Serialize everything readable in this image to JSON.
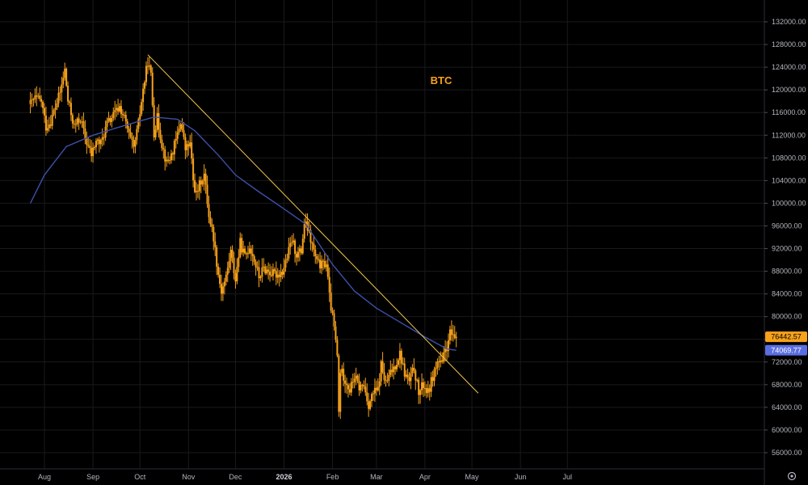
{
  "chart_data": {
    "type": "candlestick",
    "title": "BTC",
    "symbol": "BTC",
    "y_axis": {
      "ylim": [
        53000,
        134000
      ],
      "ticks": [
        "132000.00",
        "128000.00",
        "124000.00",
        "120000.00",
        "116000.00",
        "112000.00",
        "108000.00",
        "104000.00",
        "100000.00",
        "96000.00",
        "92000.00",
        "88000.00",
        "84000.00",
        "80000.00",
        "76000.00",
        "72000.00",
        "68000.00",
        "64000.00",
        "60000.00",
        "56000.00"
      ]
    },
    "x_axis": {
      "range": [
        "2025-07-23",
        "2026-07-23"
      ],
      "ticks": [
        {
          "label": "Aug",
          "date": "2025-08-01",
          "bold": false
        },
        {
          "label": "Sep",
          "date": "2025-09-01",
          "bold": false
        },
        {
          "label": "Oct",
          "date": "2025-10-01",
          "bold": false
        },
        {
          "label": "Nov",
          "date": "2025-11-01",
          "bold": false
        },
        {
          "label": "Dec",
          "date": "2025-12-01",
          "bold": false
        },
        {
          "label": "2026",
          "date": "2026-01-01",
          "bold": true
        },
        {
          "label": "Feb",
          "date": "2026-02-01",
          "bold": false
        },
        {
          "label": "Mar",
          "date": "2026-03-01",
          "bold": false
        },
        {
          "label": "Apr",
          "date": "2026-04-01",
          "bold": false
        },
        {
          "label": "May",
          "date": "2026-05-01",
          "bold": false
        },
        {
          "label": "Jun",
          "date": "2026-06-01",
          "bold": false
        },
        {
          "label": "Jul",
          "date": "2026-07-01",
          "bold": false
        }
      ]
    },
    "price_close_path": [
      [
        "2025-07-23",
        117500
      ],
      [
        "2025-07-26",
        118500
      ],
      [
        "2025-07-30",
        118000
      ],
      [
        "2025-08-02",
        113500
      ],
      [
        "2025-08-05",
        114500
      ],
      [
        "2025-08-08",
        117000
      ],
      [
        "2025-08-11",
        119500
      ],
      [
        "2025-08-14",
        123500
      ],
      [
        "2025-08-16",
        118000
      ],
      [
        "2025-08-20",
        113500
      ],
      [
        "2025-08-24",
        115000
      ],
      [
        "2025-08-27",
        111500
      ],
      [
        "2025-08-31",
        108500
      ],
      [
        "2025-09-03",
        111000
      ],
      [
        "2025-09-06",
        110500
      ],
      [
        "2025-09-10",
        114000
      ],
      [
        "2025-09-14",
        115500
      ],
      [
        "2025-09-18",
        117000
      ],
      [
        "2025-09-21",
        115000
      ],
      [
        "2025-09-24",
        112000
      ],
      [
        "2025-09-27",
        109500
      ],
      [
        "2025-09-30",
        114000
      ],
      [
        "2025-10-03",
        120000
      ],
      [
        "2025-10-06",
        125000
      ],
      [
        "2025-10-08",
        122500
      ],
      [
        "2025-10-10",
        112500
      ],
      [
        "2025-10-12",
        115000
      ],
      [
        "2025-10-15",
        110500
      ],
      [
        "2025-10-18",
        107000
      ],
      [
        "2025-10-21",
        108500
      ],
      [
        "2025-10-24",
        111000
      ],
      [
        "2025-10-27",
        114500
      ],
      [
        "2025-10-30",
        109500
      ],
      [
        "2025-11-02",
        110500
      ],
      [
        "2025-11-04",
        104000
      ],
      [
        "2025-11-06",
        101500
      ],
      [
        "2025-11-09",
        104000
      ],
      [
        "2025-11-11",
        105000
      ],
      [
        "2025-11-14",
        98000
      ],
      [
        "2025-11-17",
        94000
      ],
      [
        "2025-11-20",
        87500
      ],
      [
        "2025-11-22",
        84500
      ],
      [
        "2025-11-25",
        87000
      ],
      [
        "2025-11-28",
        91500
      ],
      [
        "2025-12-01",
        86500
      ],
      [
        "2025-12-04",
        93000
      ],
      [
        "2025-12-07",
        90500
      ],
      [
        "2025-12-10",
        92500
      ],
      [
        "2025-12-13",
        90000
      ],
      [
        "2025-12-16",
        87000
      ],
      [
        "2025-12-19",
        88500
      ],
      [
        "2025-12-22",
        88000
      ],
      [
        "2025-12-25",
        87500
      ],
      [
        "2025-12-28",
        87500
      ],
      [
        "2025-12-31",
        88000
      ],
      [
        "2026-01-03",
        90500
      ],
      [
        "2026-01-06",
        93500
      ],
      [
        "2026-01-09",
        91000
      ],
      [
        "2026-01-12",
        91500
      ],
      [
        "2026-01-14",
        96500
      ],
      [
        "2026-01-16",
        95500
      ],
      [
        "2026-01-19",
        92500
      ],
      [
        "2026-01-22",
        89500
      ],
      [
        "2026-01-25",
        89000
      ],
      [
        "2026-01-28",
        89500
      ],
      [
        "2026-01-30",
        83500
      ],
      [
        "2026-02-02",
        78000
      ],
      [
        "2026-02-04",
        73000
      ],
      [
        "2026-02-05",
        63000
      ],
      [
        "2026-02-06",
        70500
      ],
      [
        "2026-02-09",
        69000
      ],
      [
        "2026-02-12",
        67000
      ],
      [
        "2026-02-15",
        69500
      ],
      [
        "2026-02-18",
        67500
      ],
      [
        "2026-02-21",
        67800
      ],
      [
        "2026-02-24",
        64500
      ],
      [
        "2026-02-27",
        66500
      ],
      [
        "2026-03-02",
        67000
      ],
      [
        "2026-03-04",
        71500
      ],
      [
        "2026-03-07",
        68000
      ],
      [
        "2026-03-10",
        70000
      ],
      [
        "2026-03-13",
        71500
      ],
      [
        "2026-03-16",
        73500
      ],
      [
        "2026-03-19",
        70000
      ],
      [
        "2026-03-22",
        68500
      ],
      [
        "2026-03-25",
        71000
      ],
      [
        "2026-03-28",
        66500
      ],
      [
        "2026-03-31",
        68000
      ],
      [
        "2026-04-03",
        66500
      ],
      [
        "2026-04-06",
        69500
      ],
      [
        "2026-04-09",
        72000
      ],
      [
        "2026-04-12",
        71500
      ],
      [
        "2026-04-14",
        74500
      ],
      [
        "2026-04-16",
        75000
      ],
      [
        "2026-04-17",
        77500
      ],
      [
        "2026-04-19",
        76000
      ],
      [
        "2026-04-21",
        76442.57
      ]
    ],
    "moving_average_path": [
      [
        "2025-07-23",
        100000
      ],
      [
        "2025-08-01",
        105000
      ],
      [
        "2025-08-15",
        110000
      ],
      [
        "2025-09-01",
        112000
      ],
      [
        "2025-09-15",
        113200
      ],
      [
        "2025-10-01",
        114500
      ],
      [
        "2025-10-10",
        115200
      ],
      [
        "2025-10-25",
        114800
      ],
      [
        "2025-11-05",
        112800
      ],
      [
        "2025-11-20",
        108500
      ],
      [
        "2025-12-01",
        105000
      ],
      [
        "2025-12-15",
        102200
      ],
      [
        "2026-01-01",
        99000
      ],
      [
        "2026-01-15",
        96300
      ],
      [
        "2026-02-01",
        89200
      ],
      [
        "2026-02-15",
        84500
      ],
      [
        "2026-03-01",
        81500
      ],
      [
        "2026-03-15",
        79200
      ],
      [
        "2026-04-01",
        76400
      ],
      [
        "2026-04-15",
        74300
      ],
      [
        "2026-04-21",
        74069.77
      ]
    ],
    "trend_line": {
      "start": [
        "2025-10-06",
        126200
      ],
      "end": [
        "2026-05-05",
        66500
      ]
    },
    "last_price": {
      "value": 76442.57,
      "label": "76442.57",
      "color": "#f7a21b"
    },
    "ma_value": {
      "value": 74069.77,
      "label": "74069.77",
      "color": "#5b6ee1"
    },
    "colors": {
      "background": "#000000",
      "candles": "#f7a21b",
      "moving_average": "#3f4fa8",
      "trend_line": "#f2c94c",
      "grid": "#1a1a1a",
      "axis_text": "#b2b5be"
    },
    "grid": true,
    "legend": "none"
  },
  "settings_icon": "gear-icon"
}
